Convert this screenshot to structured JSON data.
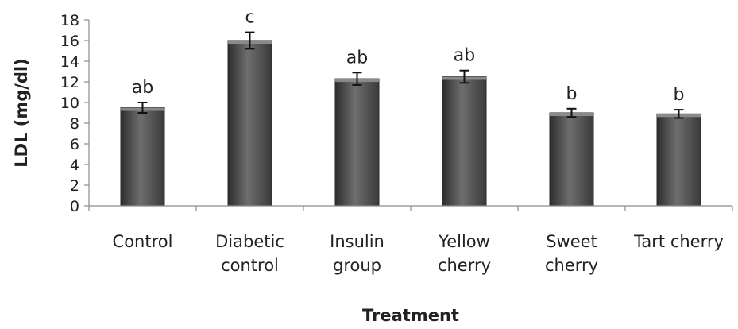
{
  "chart_data": {
    "type": "bar",
    "title": "",
    "xlabel": "Treatment",
    "ylabel": "LDL (mg/dl)",
    "ylim": [
      0,
      18
    ],
    "yticks": [
      "0",
      "2",
      "4",
      "6",
      "8",
      "10",
      "12",
      "14",
      "16",
      "18"
    ],
    "grid": false,
    "legend": "none",
    "categories": [
      [
        "Control"
      ],
      [
        "Diabetic",
        "control"
      ],
      [
        "Insulin",
        "group"
      ],
      [
        "Yellow",
        "cherry"
      ],
      [
        "Sweet",
        "cherry"
      ],
      [
        "Tart cherry"
      ]
    ],
    "values": [
      9.5,
      16.0,
      12.3,
      12.5,
      9.0,
      8.9
    ],
    "errors": [
      0.5,
      0.8,
      0.6,
      0.6,
      0.4,
      0.4
    ],
    "significance_labels": [
      "ab",
      "c",
      "ab",
      "ab",
      "b",
      "b"
    ],
    "bar_color": "#5a5a5a"
  }
}
